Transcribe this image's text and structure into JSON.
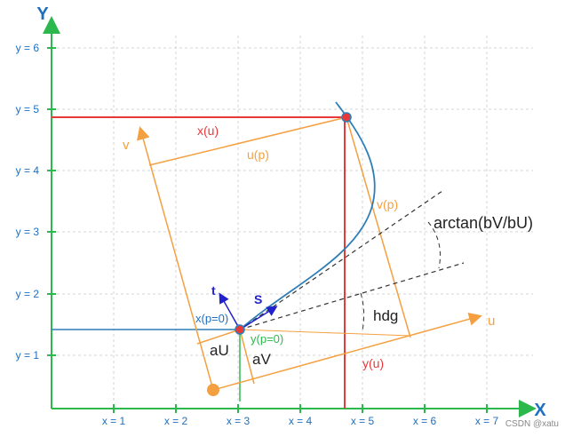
{
  "axes": {
    "x_title": "X",
    "y_title": "Y",
    "x_ticks": [
      "x = 1",
      "x = 2",
      "x = 3",
      "x = 4",
      "x = 5",
      "x = 6",
      "x = 7"
    ],
    "y_ticks": [
      "y = 1",
      "y = 2",
      "y = 3",
      "y = 4",
      "y = 5",
      "y = 6"
    ]
  },
  "labels": {
    "x_u": "x(u)",
    "u_p": "u(p)",
    "v_axis": "v",
    "v_p": "v(p)",
    "arctan": "arctan(bV/bU)",
    "hdg": "hdg",
    "u_axis": "u",
    "y_u": "y(u)",
    "x_p0": "x(p=0)",
    "y_p0": "y(p=0)",
    "aU": "aU",
    "aV": "aV",
    "t": "t",
    "s": "S",
    "watermark": "CSDN @xatu"
  },
  "colors": {
    "axis_green": "#2db84d",
    "grid": "#d4d4d4",
    "orange": "#f5a040",
    "red": "#e8393a",
    "curve_blue": "#2e7fb8",
    "arrow_blue": "#2222cc",
    "label_blue": "#1f6fc0",
    "text_dark": "#222222",
    "dashed": "#333333"
  }
}
